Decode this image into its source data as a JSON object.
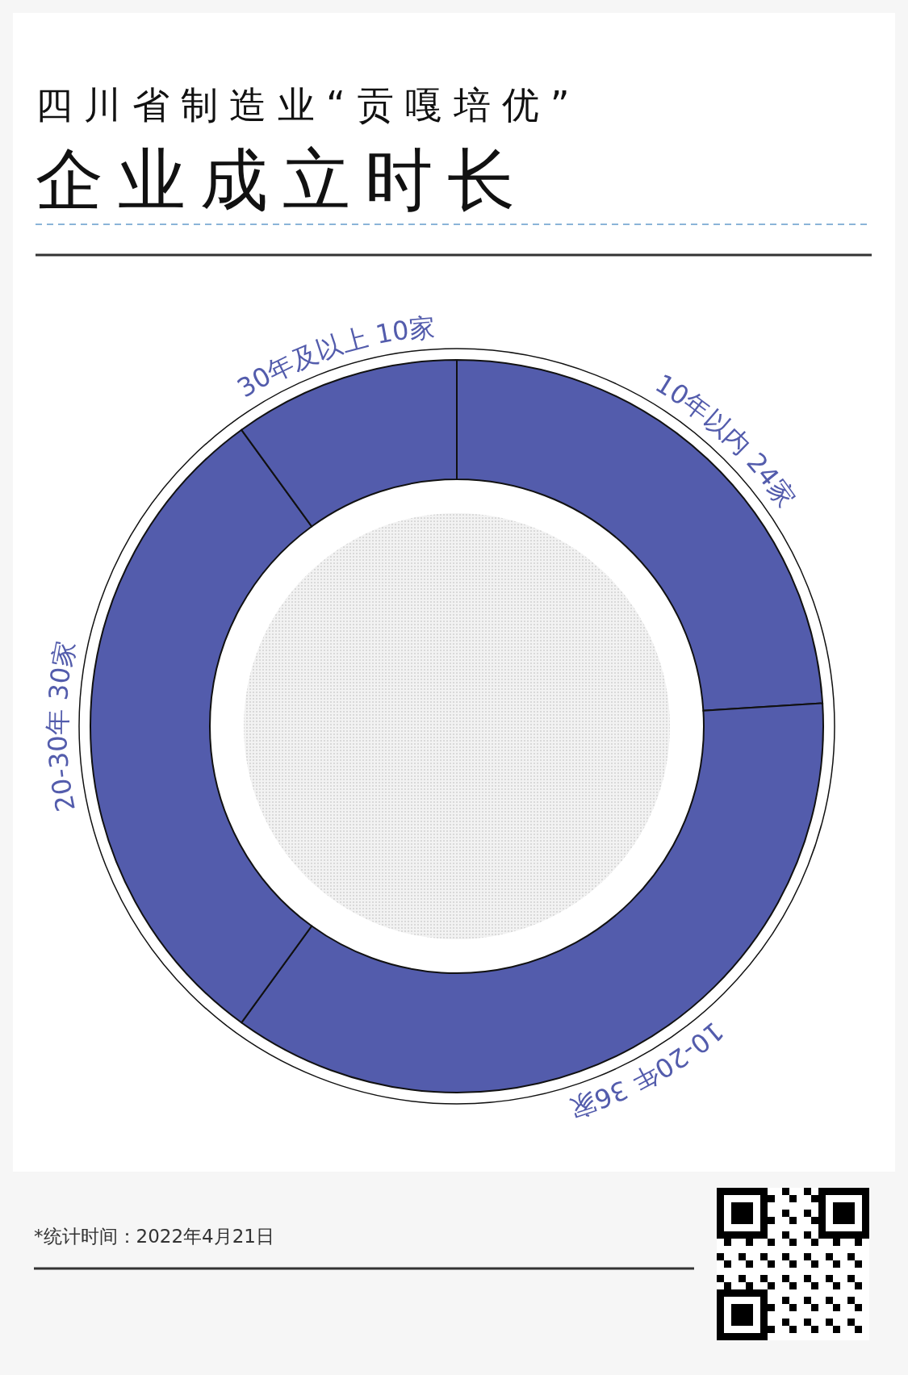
{
  "chart_data": {
    "type": "donut",
    "title": "四川省制造业“贡嘎培优”",
    "subtitle": "企业成立时长",
    "categories": [
      "10年以内",
      "10-20年",
      "20-30年",
      "30年及以上"
    ],
    "values": [
      24,
      36,
      30,
      10
    ],
    "value_labels": [
      "24家",
      "36家",
      "30家",
      "10家"
    ],
    "colors": [
      "#535cac",
      "#535cac",
      "#535cac",
      "#535cac"
    ],
    "annotations": [
      "*统计时间：2022年4月21日"
    ]
  }
}
